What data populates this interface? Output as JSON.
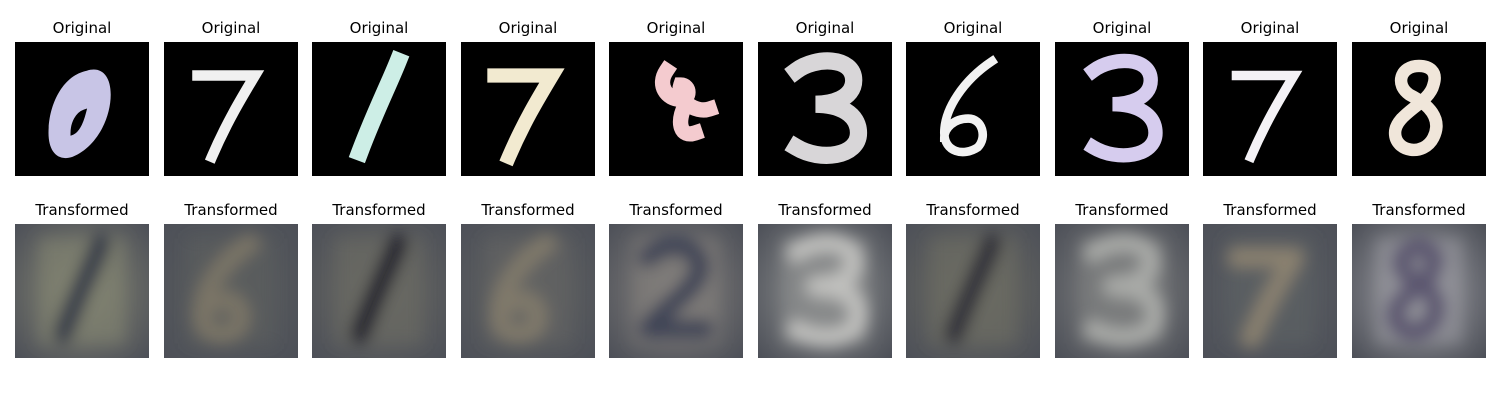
{
  "rows": [
    {
      "title": "Original",
      "kind": "mnist",
      "background": "#000000",
      "cells": [
        {
          "digit": "0",
          "color": "#c8c5e6"
        },
        {
          "digit": "7",
          "color": "#f0f0f0"
        },
        {
          "digit": "1",
          "color": "#cdeee6"
        },
        {
          "digit": "7",
          "color": "#f2ead0"
        },
        {
          "digit": "scribble",
          "color": "#f4cbcf"
        },
        {
          "digit": "3",
          "color": "#d8d6d8"
        },
        {
          "digit": "6",
          "color": "#f2f2f2"
        },
        {
          "digit": "3",
          "color": "#d6ccee"
        },
        {
          "digit": "7",
          "color": "#f4f2f6"
        },
        {
          "digit": "8",
          "color": "#f0e6da"
        }
      ]
    },
    {
      "title": "Transformed",
      "kind": "svhn",
      "cells": [
        {
          "digit": "1",
          "background": "#828372",
          "stroke": "#353a4a"
        },
        {
          "digit": "6",
          "background": "#5b5e5e",
          "stroke": "#7a7566"
        },
        {
          "digit": "1",
          "background": "#6a6a63",
          "stroke": "#23242f"
        },
        {
          "digit": "6",
          "background": "#626462",
          "stroke": "#80796a"
        },
        {
          "digit": "2",
          "background": "#827f7c",
          "stroke": "#3f4557"
        },
        {
          "digit": "3",
          "background": "#8d8f8f",
          "stroke": "#c0c0bd"
        },
        {
          "digit": "1",
          "background": "#6c6c62",
          "stroke": "#2e2e38"
        },
        {
          "digit": "3",
          "background": "#7f8080",
          "stroke": "#a9aaa7"
        },
        {
          "digit": "7",
          "background": "#5c5f63",
          "stroke": "#8a816f"
        },
        {
          "digit": "8",
          "background": "#9a9aa0",
          "stroke": "#5b5670"
        }
      ]
    }
  ]
}
